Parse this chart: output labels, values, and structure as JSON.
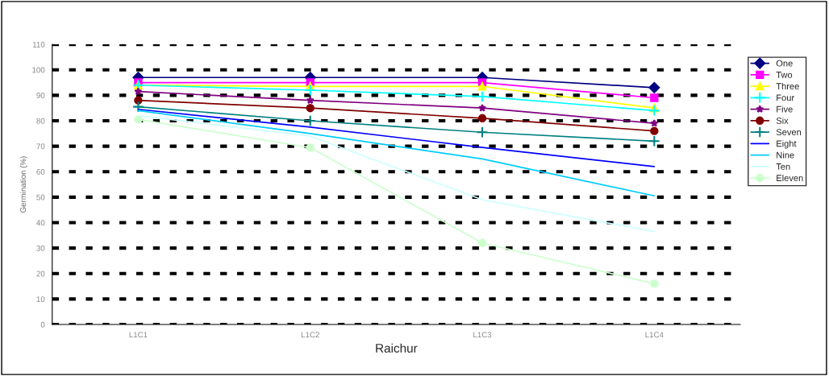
{
  "chart_data": {
    "type": "line",
    "xlabel": "Raichur",
    "ylabel": "Germination (%)",
    "categories": [
      "L1C1",
      "L1C2",
      "L1C3",
      "L1C4"
    ],
    "series": [
      {
        "name": "One",
        "color": "#000080",
        "marker": "diamond",
        "values": [
          97,
          97,
          97,
          93
        ]
      },
      {
        "name": "Two",
        "color": "#ff00ff",
        "marker": "square",
        "values": [
          95,
          95,
          95,
          89
        ]
      },
      {
        "name": "Three",
        "color": "#ffff00",
        "marker": "triangle",
        "values": [
          94,
          93.5,
          93.5,
          85
        ]
      },
      {
        "name": "Four",
        "color": "#00ffff",
        "marker": "cross",
        "values": [
          94,
          92,
          89.5,
          84
        ]
      },
      {
        "name": "Five",
        "color": "#800080",
        "marker": "star",
        "values": [
          91.5,
          88,
          85,
          79
        ]
      },
      {
        "name": "Six",
        "color": "#800000",
        "marker": "circle",
        "values": [
          88,
          85,
          81,
          76
        ]
      },
      {
        "name": "Seven",
        "color": "#008080",
        "marker": "cross",
        "values": [
          85.5,
          80,
          75.5,
          72
        ]
      },
      {
        "name": "Eight",
        "color": "#0000ff",
        "marker": "none",
        "values": [
          84.5,
          77.5,
          69.5,
          62
        ]
      },
      {
        "name": "Nine",
        "color": "#00ccff",
        "marker": "none",
        "values": [
          84,
          75,
          65,
          50.5
        ]
      },
      {
        "name": "Ten",
        "color": "#ccffff",
        "marker": "none",
        "values": [
          82,
          74,
          49,
          36.5
        ]
      },
      {
        "name": "Eleven",
        "color": "#ccffcc",
        "marker": "circle",
        "values": [
          80.5,
          69.5,
          32,
          16
        ]
      }
    ],
    "ylim": [
      0,
      110
    ],
    "yticks": [
      0,
      10,
      20,
      30,
      40,
      50,
      60,
      70,
      80,
      90,
      100,
      110
    ],
    "grid": "y",
    "legend": "top right"
  }
}
